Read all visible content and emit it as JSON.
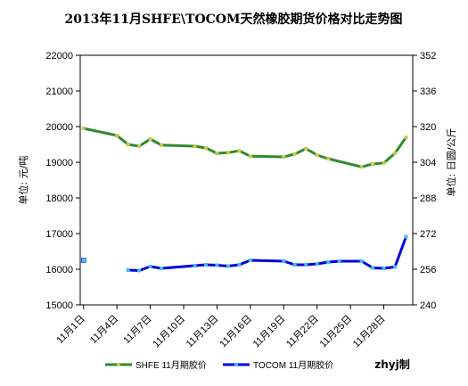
{
  "chart_data": {
    "type": "line",
    "title": "2013年11月SHFE\\TOCOM天然橡胶期货价格对比走势图",
    "ylabel_left": "单位: 元/吨",
    "ylabel_right": "单位: 日圆/公斤",
    "ylim_left": [
      15000,
      22000
    ],
    "yticks_left": [
      15000,
      16000,
      17000,
      18000,
      19000,
      20000,
      21000,
      22000
    ],
    "ylim_right": [
      240,
      352
    ],
    "yticks_right": [
      240,
      256,
      272,
      288,
      304,
      320,
      336,
      352
    ],
    "x_range": [
      1,
      30
    ],
    "xticks": [
      {
        "x": 1,
        "label": "11月1日"
      },
      {
        "x": 4,
        "label": "11月4日"
      },
      {
        "x": 7,
        "label": "11月7日"
      },
      {
        "x": 10,
        "label": "11月10日"
      },
      {
        "x": 13,
        "label": "11月13日"
      },
      {
        "x": 16,
        "label": "11月16日"
      },
      {
        "x": 19,
        "label": "11月19日"
      },
      {
        "x": 22,
        "label": "11月22日"
      },
      {
        "x": 25,
        "label": "11月25日"
      },
      {
        "x": 28,
        "label": "11月28日"
      }
    ],
    "grid": false,
    "legend_position": "bottom",
    "series": [
      {
        "name": "SHFE 11月期胶价",
        "axis": "left",
        "color": "#2e8b2e",
        "marker_color": "#c8c850",
        "points": [
          [
            1,
            19950
          ],
          [
            4,
            19750
          ],
          [
            5,
            19500
          ],
          [
            6,
            19450
          ],
          [
            7,
            19650
          ],
          [
            8,
            19480
          ],
          [
            11,
            19450
          ],
          [
            12,
            19400
          ],
          [
            13,
            19250
          ],
          [
            14,
            19270
          ],
          [
            15,
            19320
          ],
          [
            16,
            19170
          ],
          [
            19,
            19150
          ],
          [
            20,
            19230
          ],
          [
            21,
            19380
          ],
          [
            22,
            19200
          ],
          [
            23,
            19100
          ],
          [
            26,
            18870
          ],
          [
            27,
            18950
          ],
          [
            28,
            18980
          ],
          [
            29,
            19250
          ],
          [
            30,
            19700
          ]
        ]
      },
      {
        "name": "TOCOM 11月期胶价",
        "axis": "right",
        "color": "#0000e0",
        "marker_color": "#40c0e8",
        "points": [
          [
            5,
            255.6
          ],
          [
            6,
            255.4
          ],
          [
            7,
            257.2
          ],
          [
            8,
            256.4
          ],
          [
            11,
            257.6
          ],
          [
            12,
            258.0
          ],
          [
            13,
            257.8
          ],
          [
            14,
            257.4
          ],
          [
            15,
            258.0
          ],
          [
            16,
            260.0
          ],
          [
            19,
            259.6
          ],
          [
            20,
            258.0
          ],
          [
            21,
            258.0
          ],
          [
            22,
            258.4
          ],
          [
            23,
            259.2
          ],
          [
            24,
            259.6
          ],
          [
            26,
            259.6
          ],
          [
            27,
            256.6
          ],
          [
            28,
            256.4
          ],
          [
            29,
            257.0
          ],
          [
            30,
            270.6
          ]
        ],
        "isolated_points": [
          [
            1,
            260.0
          ]
        ]
      }
    ],
    "credit": "zhyj制"
  }
}
